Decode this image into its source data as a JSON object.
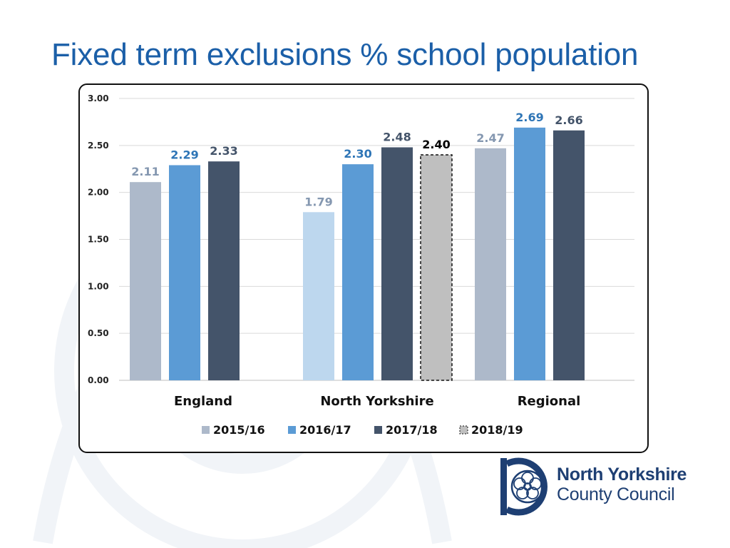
{
  "slide": {
    "title": "Fixed term exclusions % school population"
  },
  "logo": {
    "line1": "North Yorkshire",
    "line2": "County Council",
    "icon": "yorkshire-rose-emblem"
  },
  "colors": {
    "title": "#1b5fa8",
    "s2015": "#adb9ca",
    "s2015_ny": "#bdd7ee",
    "s2016": "#5b9bd5",
    "s2017": "#44546a",
    "s2018": "#bfbfbf",
    "label2015": "#8497b0",
    "label2016": "#2e75b6",
    "label2017": "#44546a",
    "label2018": "#000000",
    "logo": "#1e3f73"
  },
  "chart_data": {
    "type": "bar",
    "title": "",
    "xlabel": "",
    "ylabel": "",
    "ylim": [
      0,
      3
    ],
    "yticks": [
      "0.00",
      "0.50",
      "1.00",
      "1.50",
      "2.00",
      "2.50",
      "3.00"
    ],
    "grid": true,
    "legend_position": "bottom",
    "categories": [
      "England",
      "North Yorkshire",
      "Regional"
    ],
    "series": [
      {
        "name": "2015/16",
        "values": [
          2.11,
          1.79,
          2.47
        ],
        "labels": [
          "2.11",
          "1.79",
          "2.47"
        ]
      },
      {
        "name": "2016/17",
        "values": [
          2.29,
          2.3,
          2.69
        ],
        "labels": [
          "2.29",
          "2.30",
          "2.69"
        ]
      },
      {
        "name": "2017/18",
        "values": [
          2.33,
          2.48,
          2.66
        ],
        "labels": [
          "2.33",
          "2.48",
          "2.66"
        ]
      },
      {
        "name": "2018/19",
        "values": [
          null,
          2.4,
          null
        ],
        "labels": [
          "",
          "2.40",
          ""
        ],
        "style": "dashed"
      }
    ]
  }
}
